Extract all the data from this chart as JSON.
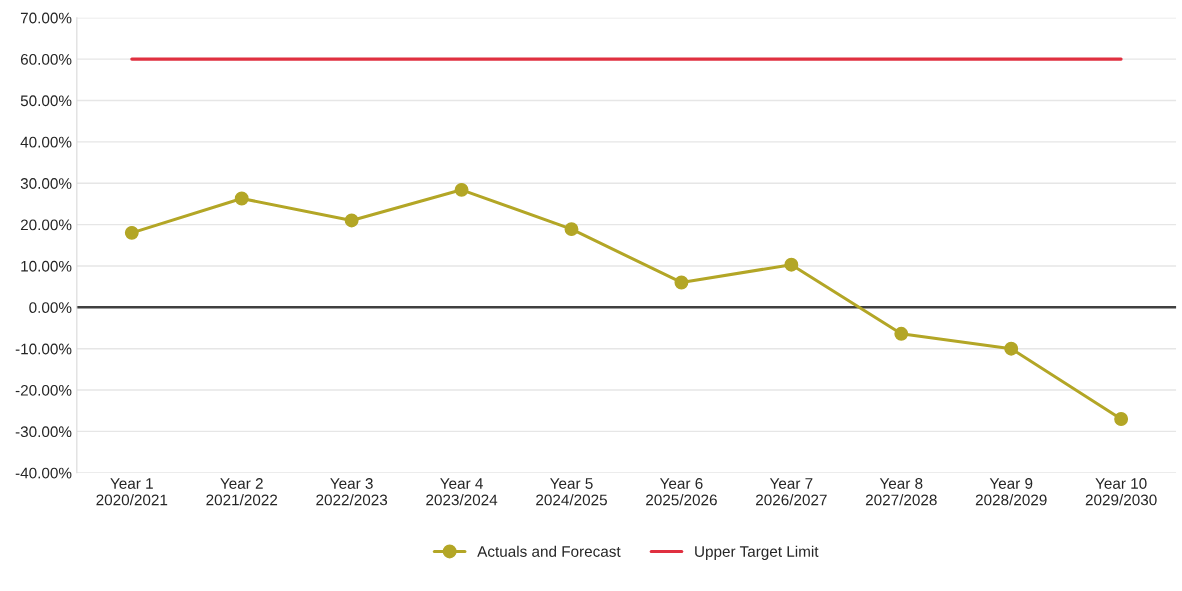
{
  "chart_data": {
    "type": "line",
    "categories": [
      "Year 1\n2020/2021",
      "Year 2\n2021/2022",
      "Year 3\n2022/2023",
      "Year 4\n2023/2024",
      "Year 5\n2024/2025",
      "Year 6\n2025/2026",
      "Year 7\n2026/2027",
      "Year 8\n2027/2028",
      "Year 9\n2028/2029",
      "Year 10\n2029/2030"
    ],
    "series": [
      {
        "name": "Actuals and Forecast",
        "color": "#b3a626",
        "marker": "circle",
        "values": [
          18,
          26.3,
          21,
          28.4,
          18.9,
          6,
          10.3,
          -6.4,
          -10,
          -27
        ]
      },
      {
        "name": "Upper Target Limit",
        "color": "#e03040",
        "marker": "none",
        "values": [
          60,
          60,
          60,
          60,
          60,
          60,
          60,
          60,
          60,
          60
        ]
      }
    ],
    "ylim": [
      -40,
      70
    ],
    "yticks": [
      {
        "value": -40,
        "label": "-40.00%"
      },
      {
        "value": -30,
        "label": "-30.00%"
      },
      {
        "value": -20,
        "label": "-20.00%"
      },
      {
        "value": -10,
        "label": "-10.00%"
      },
      {
        "value": 0,
        "label": "0.00%"
      },
      {
        "value": 10,
        "label": "10.00%"
      },
      {
        "value": 20,
        "label": "20.00%"
      },
      {
        "value": 30,
        "label": "30.00%"
      },
      {
        "value": 40,
        "label": "40.00%"
      },
      {
        "value": 50,
        "label": "50.00%"
      },
      {
        "value": 60,
        "label": "60.00%"
      },
      {
        "value": 70,
        "label": "70.00%"
      }
    ],
    "ref_lines": [
      {
        "axis": "y",
        "value": 0,
        "color": "#404040"
      }
    ],
    "grid": "y",
    "legend": "bottom"
  }
}
